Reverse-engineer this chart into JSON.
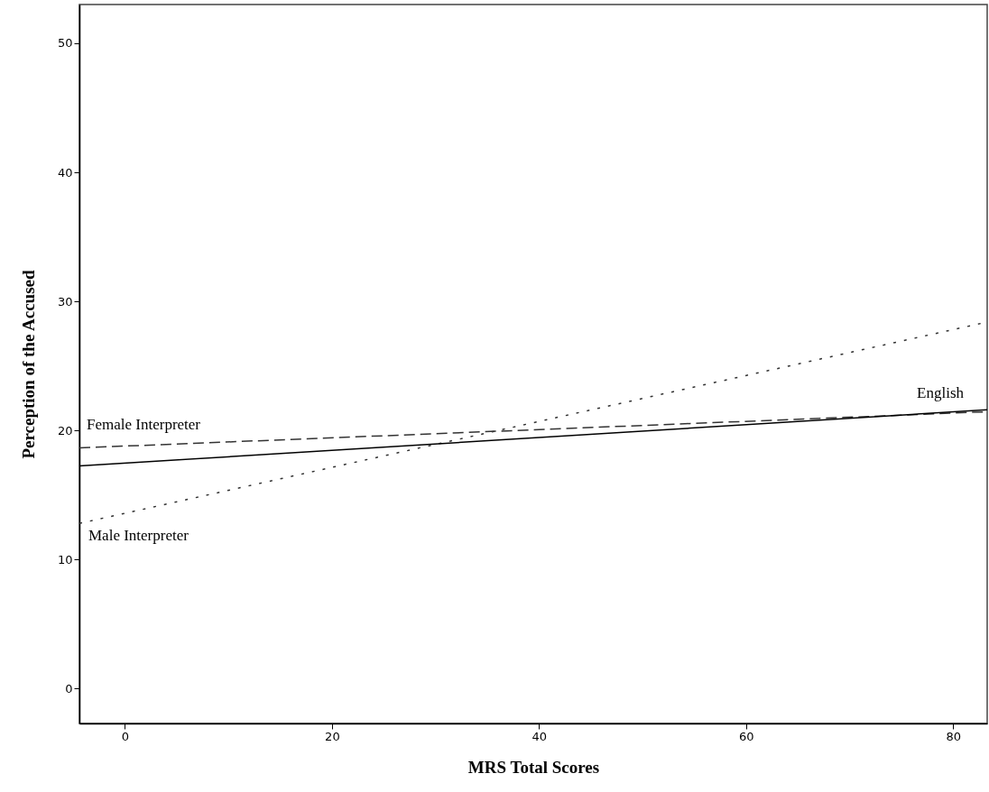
{
  "chart_data": {
    "type": "line",
    "xlabel": "MRS Total Scores",
    "ylabel": "Perception of the Accused",
    "x": [
      -4.4,
      83.3
    ],
    "xlim": [
      -4.4,
      83.3
    ],
    "ylim": [
      -2.7,
      53
    ],
    "xticks": [
      0,
      20,
      40,
      60,
      80
    ],
    "yticks": [
      0,
      10,
      20,
      30,
      40,
      50
    ],
    "grid": false,
    "legend": false,
    "marker": "none",
    "series": [
      {
        "name": "Female Interpreter",
        "color": "#333333",
        "line_style": "dashed",
        "values": [
          18.65,
          21.45
        ]
      },
      {
        "name": "Male Interpreter",
        "color": "#333333",
        "line_style": "dotted",
        "values": [
          12.8,
          28.4
        ]
      },
      {
        "name": "English",
        "color": "#000000",
        "line_style": "solid",
        "values": [
          17.25,
          21.6
        ]
      }
    ]
  }
}
